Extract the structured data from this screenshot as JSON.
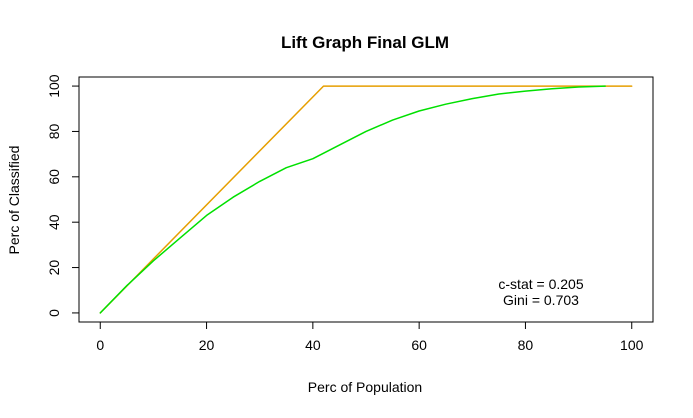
{
  "chart_data": {
    "type": "line",
    "title": "Lift Graph Final GLM",
    "xlabel": "Perc of Population",
    "ylabel": "Perc of Classified",
    "xlim": [
      -4,
      104
    ],
    "ylim": [
      -4,
      104
    ],
    "x_ticks": [
      0,
      20,
      40,
      60,
      80,
      100
    ],
    "y_ticks": [
      0,
      20,
      40,
      60,
      80,
      100
    ],
    "grid": false,
    "legend": "none",
    "series": [
      {
        "color": "#E69F00",
        "x": [
          0,
          42,
          100
        ],
        "y": [
          0,
          100,
          100
        ]
      },
      {
        "color": "#00E000",
        "x": [
          0,
          5,
          10,
          15,
          20,
          25,
          30,
          35,
          40,
          45,
          50,
          55,
          60,
          65,
          70,
          75,
          80,
          85,
          90,
          95
        ],
        "y": [
          0,
          12,
          23,
          33,
          43,
          51,
          58,
          64,
          68,
          74,
          80,
          85,
          89,
          92,
          94.5,
          96.5,
          97.8,
          98.8,
          99.6,
          100
        ]
      }
    ],
    "annotations": [
      "c-stat = 0.205",
      "Gini = 0.703"
    ]
  }
}
